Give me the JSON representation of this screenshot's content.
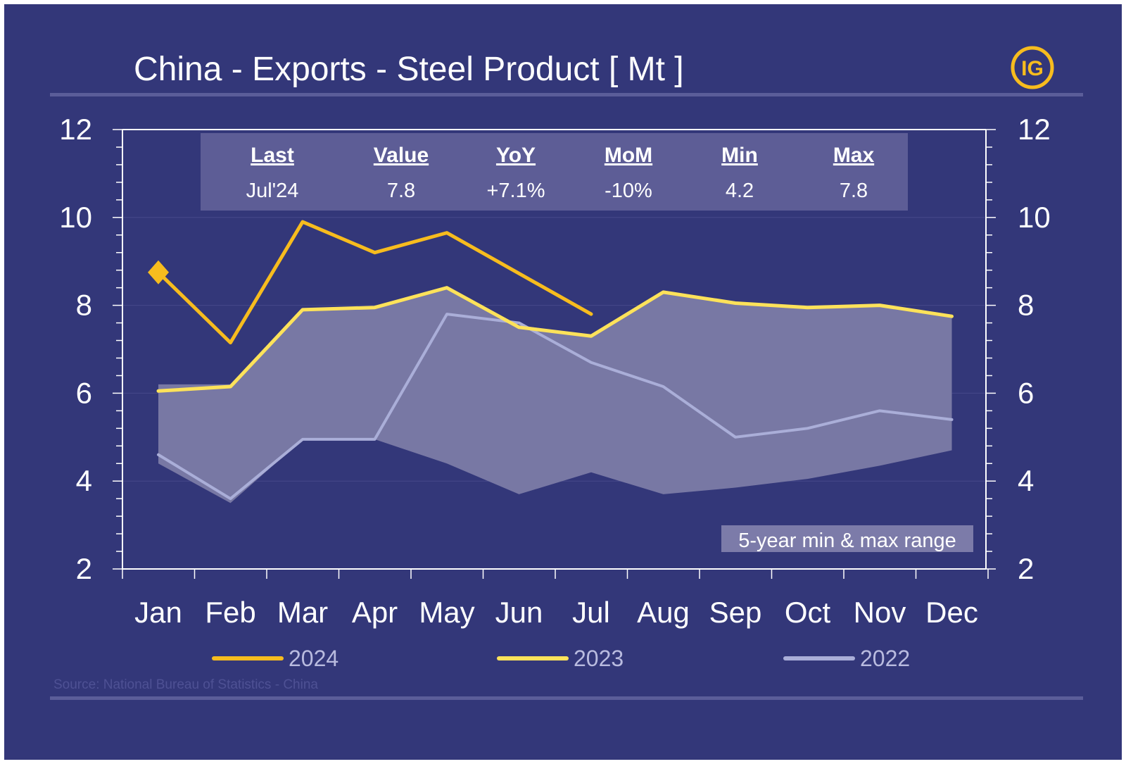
{
  "chart_data": {
    "type": "line",
    "title": "China - Exports - Steel Product [ Mt ]",
    "logo_text": "IG",
    "categories": [
      "Jan",
      "Feb",
      "Mar",
      "Apr",
      "May",
      "Jun",
      "Jul",
      "Aug",
      "Sep",
      "Oct",
      "Nov",
      "Dec"
    ],
    "ylim": [
      2,
      12
    ],
    "yticks": [
      "2",
      "4",
      "6",
      "8",
      "10",
      "12"
    ],
    "series": [
      {
        "name": "2024",
        "color": "#f7bc1e",
        "values": [
          8.75,
          7.15,
          9.9,
          9.2,
          9.65,
          null,
          7.8,
          null,
          null,
          null,
          null,
          null
        ]
      },
      {
        "name": "2023",
        "color": "#fde25a",
        "values": [
          6.05,
          6.15,
          7.9,
          7.95,
          8.4,
          7.5,
          7.3,
          8.3,
          8.05,
          7.95,
          8.0,
          7.75
        ]
      },
      {
        "name": "2022",
        "color": "#aaaed8",
        "values": [
          4.6,
          3.6,
          4.95,
          4.95,
          7.8,
          7.6,
          6.7,
          6.15,
          5.0,
          5.2,
          5.6,
          5.4
        ]
      }
    ],
    "range_band": {
      "label": "5-year min & max range",
      "max": [
        6.2,
        6.2,
        7.9,
        7.95,
        8.4,
        7.55,
        7.3,
        8.3,
        8.05,
        7.95,
        8.0,
        7.75
      ],
      "min": [
        4.4,
        3.5,
        4.95,
        4.95,
        4.4,
        3.7,
        4.2,
        3.7,
        3.85,
        4.05,
        4.35,
        4.7
      ]
    },
    "stats": {
      "headers": [
        "Last",
        "Value",
        "YoY",
        "MoM",
        "Min",
        "Max"
      ],
      "values": [
        "Jul'24",
        "7.8",
        "+7.1%",
        "-10%",
        "4.2",
        "7.8"
      ]
    },
    "source": "Source: National Bureau of Statistics - China",
    "grid": true,
    "legend_position": "bottom"
  }
}
